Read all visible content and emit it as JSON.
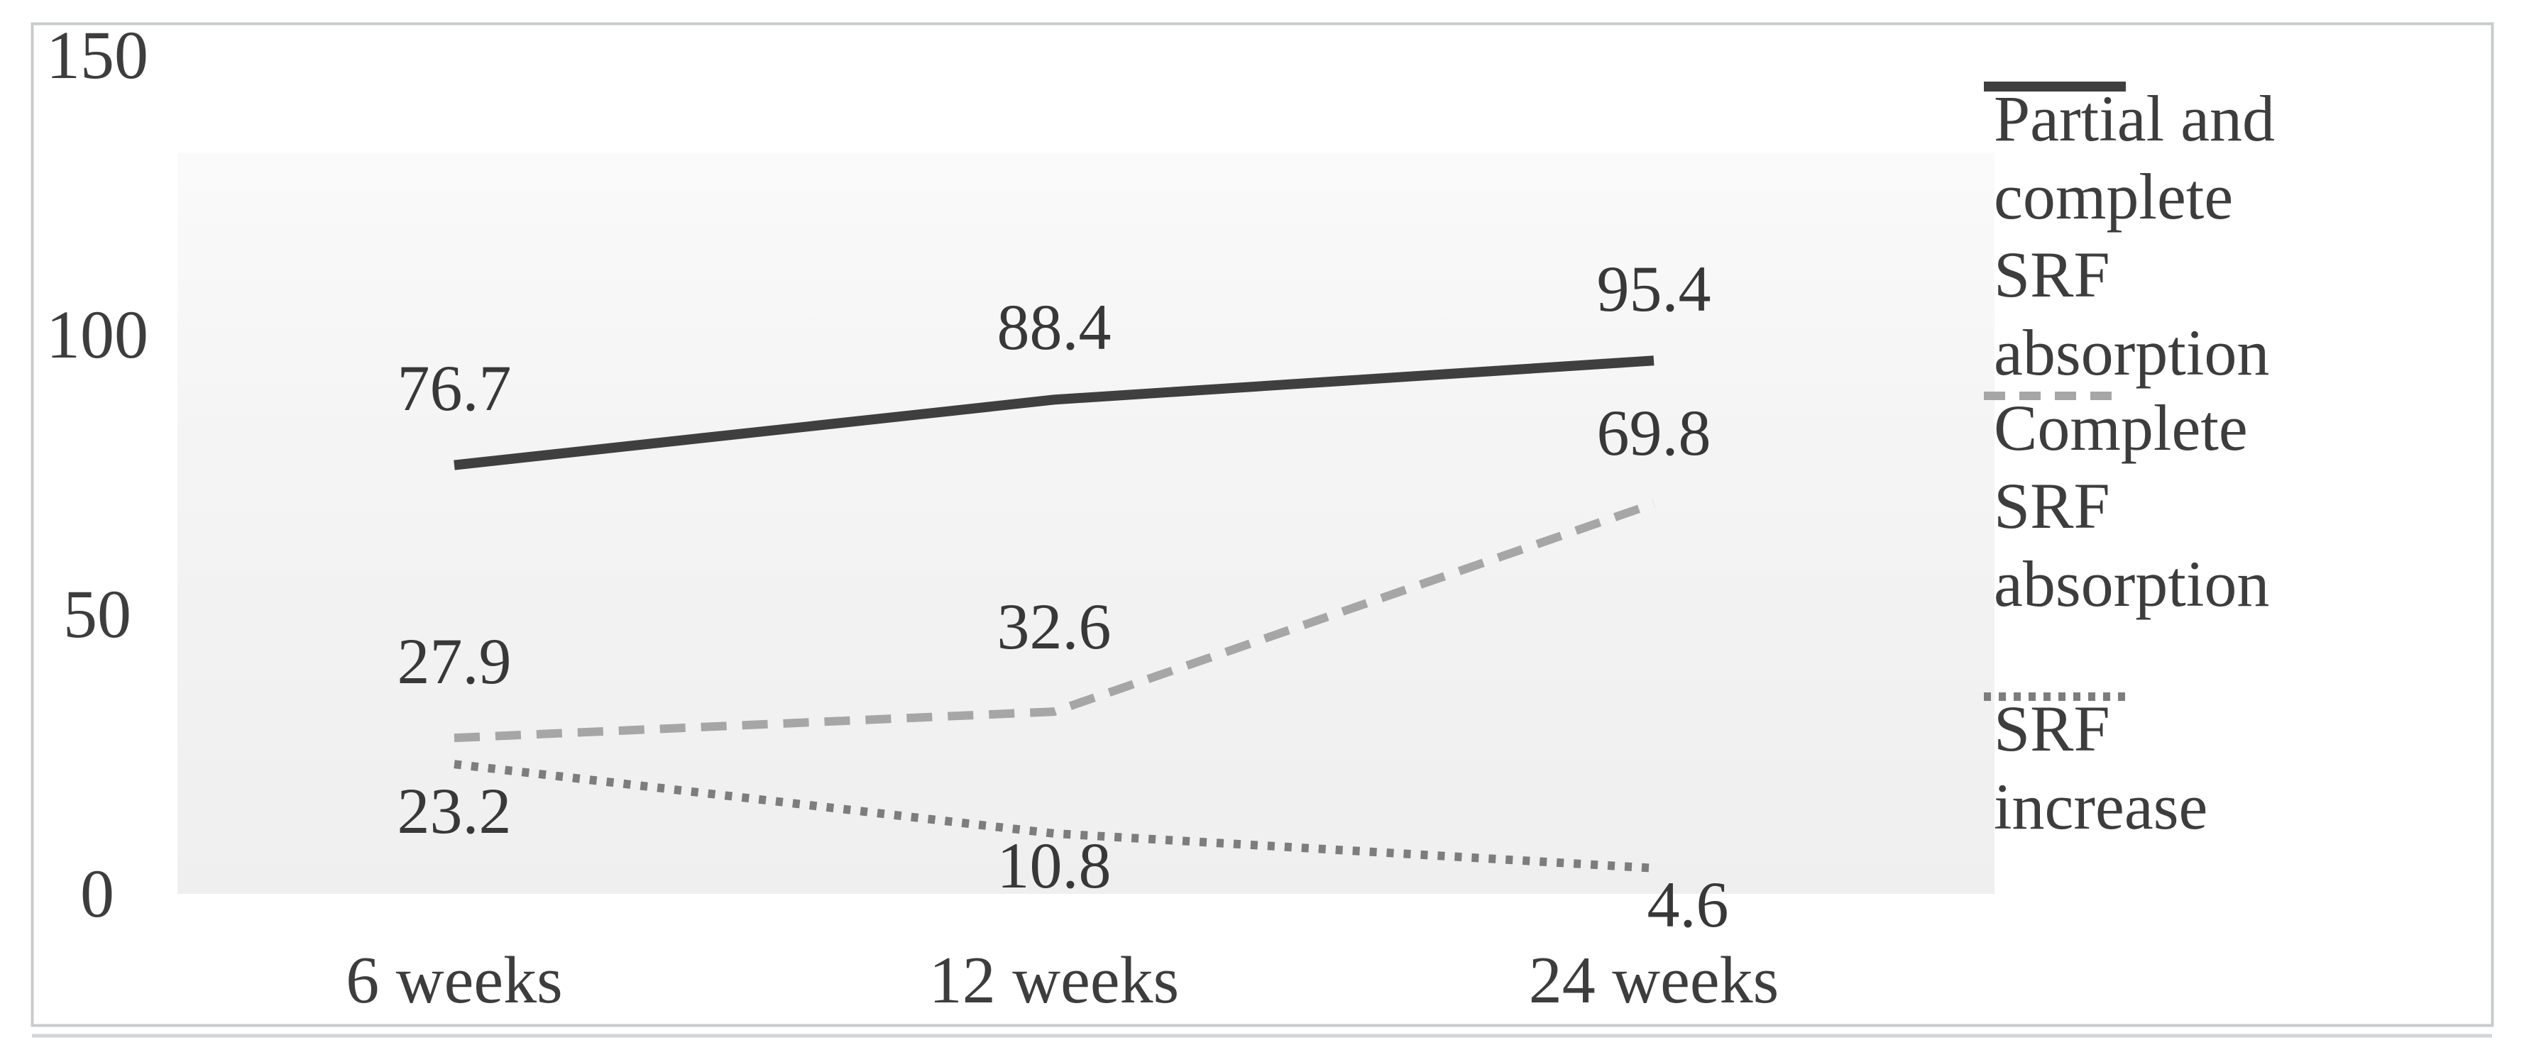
{
  "figure": {
    "description": "Line chart of SRF outcomes over follow-up time",
    "title": ""
  },
  "colors": {
    "plot_fill_top": "#fafafa",
    "plot_fill_bottom": "#efefef",
    "frame_border": "#c8cbcc",
    "bottom_rule": "#d3d6d7",
    "text": "#3d3d3d",
    "series_solid": "#3f3f3f",
    "series_dashed": "#a6a6a6",
    "series_dotted": "#7d7d7d"
  },
  "chart_data": {
    "type": "line",
    "title": "",
    "xlabel": "",
    "ylabel": "",
    "grid": false,
    "legend_position": "right",
    "ylim": [
      0,
      150
    ],
    "yticks": [
      150,
      100,
      50,
      0
    ],
    "categories": [
      "6 weeks",
      "12 weeks",
      "24 weeks"
    ],
    "series": [
      {
        "name": "Partial and complete SRF absorption",
        "style": "solid",
        "color": "#3f3f3f",
        "values": [
          76.7,
          88.4,
          95.4
        ]
      },
      {
        "name": "Complete SRF absorption",
        "style": "dashed",
        "color": "#a6a6a6",
        "values": [
          27.9,
          32.6,
          69.8
        ]
      },
      {
        "name": "SRF increase",
        "style": "dotted",
        "color": "#7d7d7d",
        "values": [
          23.2,
          10.8,
          4.6
        ]
      }
    ]
  }
}
